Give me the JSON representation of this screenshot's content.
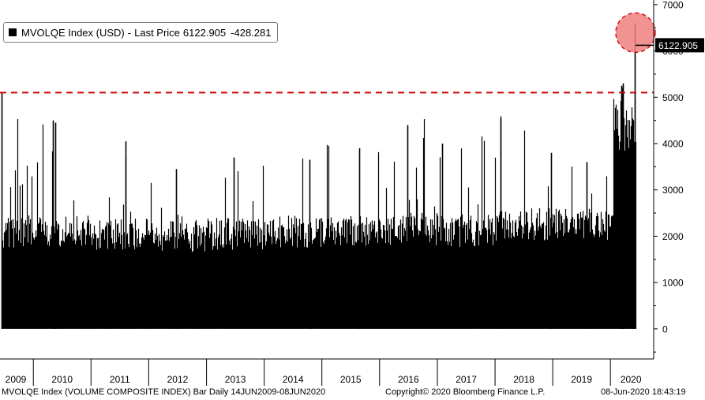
{
  "legend": {
    "ticker": "MVOLQE Index (USD)",
    "separator": "-",
    "label": "Last Price",
    "last_price": "6122.905",
    "change": "-428.281"
  },
  "footer": {
    "description": "MVOLQE Index (VOLUME COMPOSITE INDEX) Bar  Daily 14JUN2009-08JUN2020",
    "copyright": "Copyright© 2020 Bloomberg Finance L.P.",
    "timestamp": "08-Jun-2020 18:43:19"
  },
  "colors": {
    "bars": "#000000",
    "reference_line": "#cc0000",
    "highlight": "#f08080",
    "highlight_edge": "#d01010",
    "axis": "#000000"
  },
  "chart_data": {
    "type": "bar",
    "x_start": "2009-06-14",
    "x_end": "2020-06-08",
    "ylim": [
      -650,
      7100
    ],
    "yticks": [
      0,
      1000,
      2000,
      3000,
      4000,
      5000,
      6000,
      7000
    ],
    "year_labels": [
      "2009",
      "2010",
      "2011",
      "2012",
      "2013",
      "2014",
      "2015",
      "2016",
      "2017",
      "2018",
      "2019",
      "2020"
    ],
    "last_value": 6122.905,
    "last_value_label": "6122.905",
    "reference_line": 5100,
    "highlight_value": 6600,
    "series": [
      {
        "values_note": "daily volume bars, approximate yearly profile",
        "yearly_levels": [
          {
            "year": "2009",
            "base": 2000,
            "peak": 5100
          },
          {
            "year": "2010",
            "base": 2000,
            "peak": 4500
          },
          {
            "year": "2011",
            "base": 1950,
            "peak": 4050
          },
          {
            "year": "2012",
            "base": 1900,
            "peak": 3500
          },
          {
            "year": "2013",
            "base": 1950,
            "peak": 3750
          },
          {
            "year": "2014",
            "base": 2000,
            "peak": 3600
          },
          {
            "year": "2015",
            "base": 2000,
            "peak": 3900
          },
          {
            "year": "2016",
            "base": 2050,
            "peak": 4400
          },
          {
            "year": "2017",
            "base": 2000,
            "peak": 4050
          },
          {
            "year": "2018",
            "base": 2150,
            "peak": 4550
          },
          {
            "year": "2019",
            "base": 2150,
            "peak": 3700
          },
          {
            "year": "2020",
            "base": 3800,
            "peak": 6600
          }
        ]
      }
    ]
  }
}
